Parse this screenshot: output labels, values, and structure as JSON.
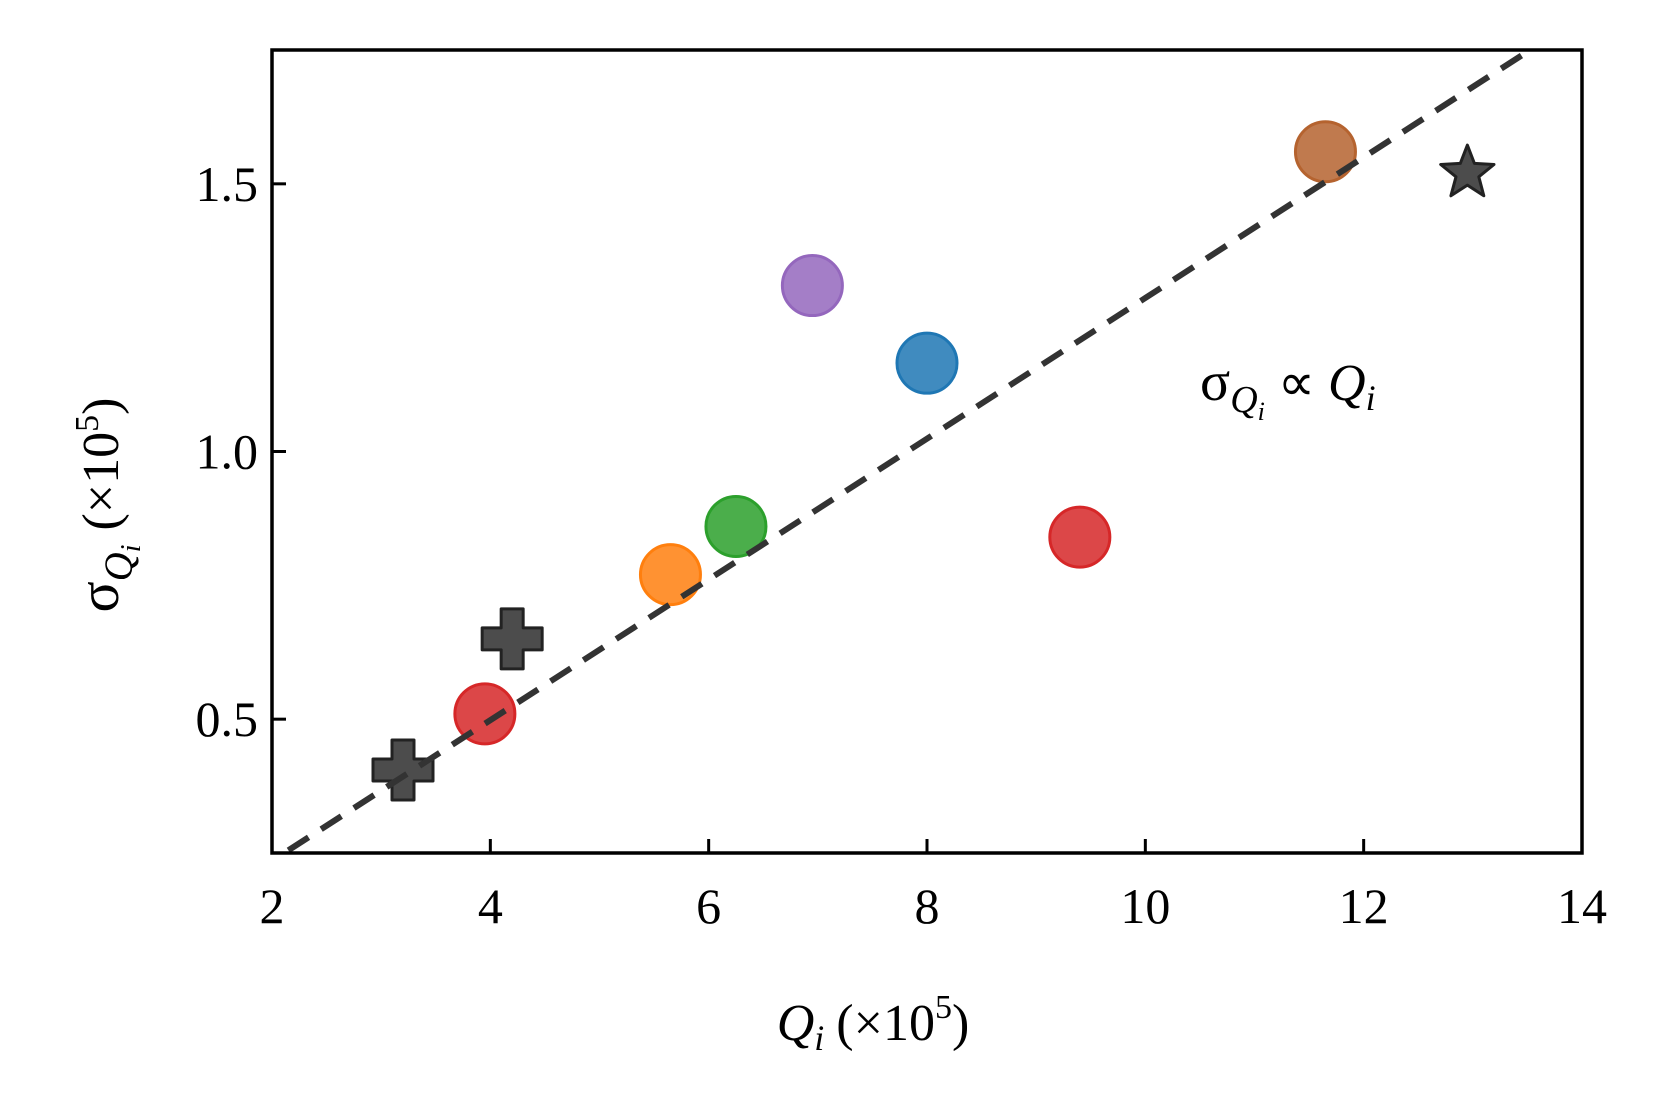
{
  "chart_data": {
    "type": "scatter",
    "xlabel": {
      "main": "Q",
      "sub": "i",
      "paren_open": "(×10",
      "sup": "5",
      "paren_close": ")"
    },
    "ylabel": {
      "main": "σ",
      "sub": "Q",
      "subsub": "i",
      "paren_open": "(×10",
      "sup": "5",
      "paren_close": ")"
    },
    "xlim": [
      2,
      14
    ],
    "ylim": [
      0.25,
      1.75
    ],
    "xticks": [
      2,
      4,
      6,
      8,
      10,
      12,
      14
    ],
    "xtick_labels": [
      "2",
      "4",
      "6",
      "8",
      "10",
      "12",
      "14"
    ],
    "yticks": [
      0.5,
      1.0,
      1.5
    ],
    "ytick_labels": [
      "0.5",
      "1.0",
      "1.5"
    ],
    "grid": false,
    "fit_line": {
      "style": "dashed",
      "color": "#333333",
      "x": [
        2.15,
        13.6
      ],
      "y": [
        0.255,
        1.76
      ]
    },
    "annotation": {
      "sigma": "σ",
      "sub": "Q",
      "subsub": "i",
      "rel": " ∝ ",
      "q": "Q",
      "qsub": "i"
    },
    "series": [
      {
        "marker": "circle",
        "color": "#d62728",
        "points": [
          [
            3.95,
            0.51
          ]
        ]
      },
      {
        "marker": "circle",
        "color": "#ff7f0e",
        "points": [
          [
            5.65,
            0.77
          ]
        ]
      },
      {
        "marker": "circle",
        "color": "#2ca02c",
        "points": [
          [
            6.25,
            0.86
          ]
        ]
      },
      {
        "marker": "circle",
        "color": "#9467bd",
        "points": [
          [
            6.95,
            1.31
          ]
        ]
      },
      {
        "marker": "circle",
        "color": "#1f77b4",
        "points": [
          [
            8.0,
            1.165
          ]
        ]
      },
      {
        "marker": "circle",
        "color": "#d62728",
        "points": [
          [
            9.4,
            0.84
          ]
        ]
      },
      {
        "marker": "circle",
        "color": "#b5632f",
        "points": [
          [
            11.65,
            1.56
          ]
        ]
      },
      {
        "marker": "plus",
        "color": "#333333",
        "points": [
          [
            3.2,
            0.405
          ],
          [
            4.2,
            0.65
          ]
        ]
      },
      {
        "marker": "star",
        "color": "#333333",
        "points": [
          [
            12.95,
            1.52
          ]
        ]
      }
    ]
  }
}
